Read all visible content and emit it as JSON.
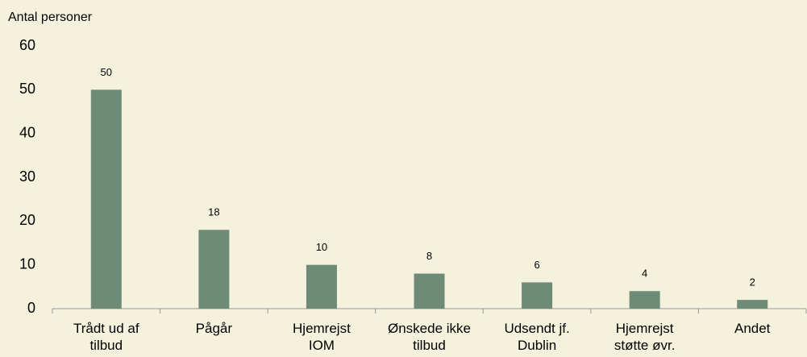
{
  "chart_data": {
    "type": "bar",
    "y_label": "Antal personer",
    "categories": [
      "Trådt ud af\ntilbud",
      "Pågår",
      "Hjemrejst\nIOM",
      "Ønskede ikke\ntilbud",
      "Udsendt jf.\nDublin",
      "Hjemrejst\nstøtte øvr.",
      "Andet"
    ],
    "values": [
      50,
      18,
      10,
      8,
      6,
      4,
      2
    ],
    "color": "#6d8b77",
    "ylim": [
      0,
      60
    ],
    "yticks": [
      0,
      10,
      20,
      30,
      40,
      50,
      60
    ],
    "grid": false
  }
}
